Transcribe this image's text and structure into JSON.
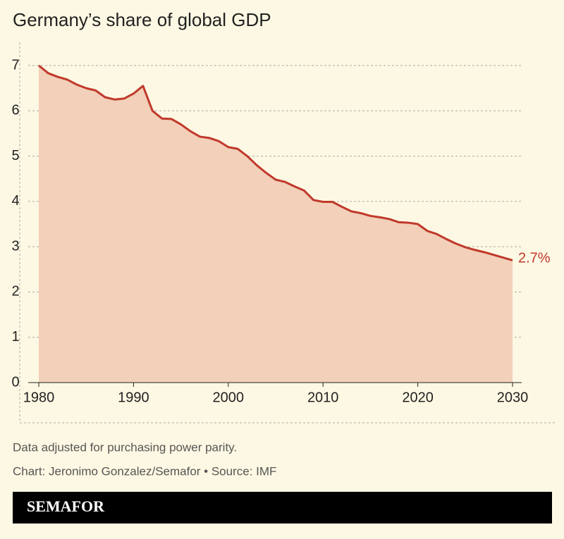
{
  "chart_data": {
    "type": "line",
    "title": "Germany’s share of global GDP",
    "x": [
      1980,
      1981,
      1982,
      1983,
      1984,
      1985,
      1986,
      1987,
      1988,
      1989,
      1990,
      1991,
      1992,
      1993,
      1994,
      1995,
      1996,
      1997,
      1998,
      1999,
      2000,
      2001,
      2002,
      2003,
      2004,
      2005,
      2006,
      2007,
      2008,
      2009,
      2010,
      2011,
      2012,
      2013,
      2014,
      2015,
      2016,
      2017,
      2018,
      2019,
      2020,
      2021,
      2022,
      2023,
      2024,
      2025,
      2026,
      2027,
      2028,
      2029,
      2030
    ],
    "values": [
      7.0,
      6.83,
      6.75,
      6.69,
      6.58,
      6.5,
      6.45,
      6.3,
      6.25,
      6.27,
      6.38,
      6.55,
      6.0,
      5.83,
      5.82,
      5.7,
      5.55,
      5.43,
      5.4,
      5.33,
      5.2,
      5.16,
      5.0,
      4.8,
      4.63,
      4.48,
      4.43,
      4.33,
      4.24,
      4.03,
      3.99,
      3.99,
      3.88,
      3.78,
      3.74,
      3.68,
      3.65,
      3.61,
      3.54,
      3.53,
      3.5,
      3.35,
      3.28,
      3.17,
      3.07,
      2.99,
      2.93,
      2.88,
      2.82,
      2.76,
      2.7
    ],
    "value_labels": [
      null,
      null,
      null,
      null,
      null,
      null,
      null,
      null,
      null,
      null,
      null,
      null,
      null,
      null,
      null,
      null,
      null,
      null,
      null,
      null,
      null,
      null,
      null,
      null,
      null,
      null,
      null,
      null,
      null,
      null,
      null,
      null,
      null,
      null,
      null,
      null,
      null,
      null,
      null,
      null,
      null,
      null,
      null,
      null,
      null,
      null,
      null,
      null,
      null,
      null,
      "2.7%"
    ],
    "color": "#c0392b",
    "fill": "#f2d0ba",
    "xlim": [
      1980,
      2030
    ],
    "xticks": [
      1980,
      1990,
      2000,
      2010,
      2020,
      2030
    ],
    "ylim": [
      0,
      7
    ],
    "yticks": [
      0,
      1,
      2,
      3,
      4,
      5,
      6,
      7
    ],
    "grid": true,
    "note": "Data adjusted for purchasing power parity.",
    "source": "Chart: Jeronimo Gonzalez/Semafor • Source: IMF",
    "brand": "SEMAFOR"
  }
}
